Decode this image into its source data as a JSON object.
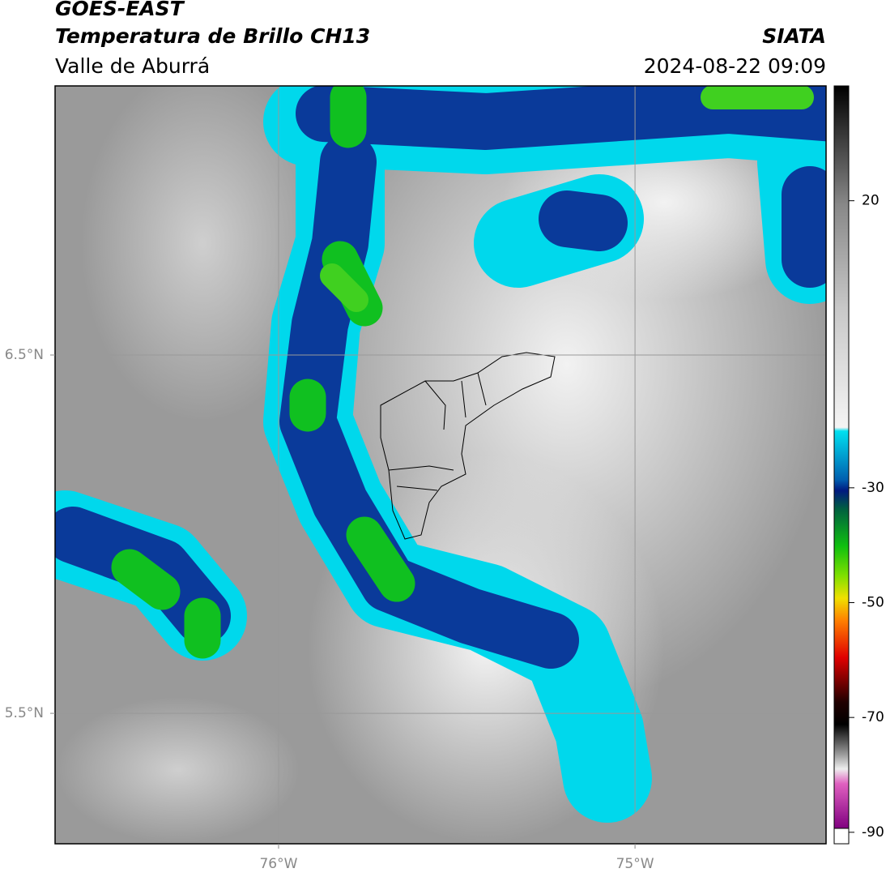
{
  "header": {
    "satellite": "GOES-EAST",
    "product": "Temperatura de Brillo CH13",
    "region": "Valle de Aburrá",
    "agency": "SIATA",
    "datetime": "2024-08-22 09:09"
  },
  "map": {
    "xlim": [
      -76.627,
      -74.464
    ],
    "ylim": [
      5.136,
      7.251
    ],
    "xticks": [
      {
        "value": -76,
        "label": "76°W"
      },
      {
        "value": -75,
        "label": "75°W"
      }
    ],
    "yticks": [
      {
        "value": 6.5,
        "label": "6.5°N"
      },
      {
        "value": 5.5,
        "label": "5.5°N"
      }
    ],
    "grid": true
  },
  "colorbar": {
    "lim": [
      -92,
      40
    ],
    "ticks": [
      20,
      -30,
      -50,
      -70,
      -90
    ]
  }
}
